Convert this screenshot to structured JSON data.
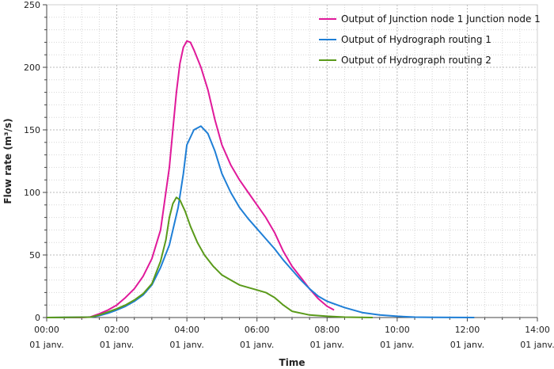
{
  "chart_data": {
    "type": "line",
    "xlabel": "Time",
    "ylabel": "Flow rate (m³/s)",
    "ylim": [
      0,
      250
    ],
    "xlim": [
      0,
      14
    ],
    "x_unit": "hours",
    "grid": true,
    "legend_position": "top-right",
    "yticks": [
      0,
      50,
      100,
      150,
      200,
      250
    ],
    "xticks": [
      {
        "x": 0,
        "time": "00:00",
        "date": "01 janv."
      },
      {
        "x": 2,
        "time": "02:00",
        "date": "01 janv."
      },
      {
        "x": 4,
        "time": "04:00",
        "date": "01 janv."
      },
      {
        "x": 6,
        "time": "06:00",
        "date": "01 janv."
      },
      {
        "x": 8,
        "time": "08:00",
        "date": "01 janv."
      },
      {
        "x": 10,
        "time": "10:00",
        "date": "01 janv."
      },
      {
        "x": 12,
        "time": "12:00",
        "date": "01 janv."
      },
      {
        "x": 14,
        "time": "14:00",
        "date": "01 janv."
      }
    ],
    "series": [
      {
        "name": "Output of Junction node 1 Junction node 1",
        "color": "#e0199a",
        "points": [
          [
            0,
            0
          ],
          [
            1,
            0
          ],
          [
            1.25,
            0.5
          ],
          [
            1.5,
            3
          ],
          [
            1.75,
            6
          ],
          [
            2,
            10
          ],
          [
            2.25,
            16
          ],
          [
            2.5,
            23
          ],
          [
            2.75,
            33
          ],
          [
            3,
            47
          ],
          [
            3.25,
            70
          ],
          [
            3.5,
            120
          ],
          [
            3.6,
            150
          ],
          [
            3.7,
            180
          ],
          [
            3.8,
            203
          ],
          [
            3.9,
            216
          ],
          [
            4,
            221
          ],
          [
            4.1,
            220
          ],
          [
            4.2,
            214
          ],
          [
            4.4,
            200
          ],
          [
            4.6,
            182
          ],
          [
            4.8,
            158
          ],
          [
            5,
            138
          ],
          [
            5.25,
            122
          ],
          [
            5.5,
            110
          ],
          [
            5.75,
            100
          ],
          [
            6,
            90
          ],
          [
            6.25,
            80
          ],
          [
            6.5,
            68
          ],
          [
            6.75,
            53
          ],
          [
            7,
            41
          ],
          [
            7.25,
            32
          ],
          [
            7.5,
            23
          ],
          [
            7.75,
            15
          ],
          [
            8,
            9
          ],
          [
            8.2,
            6
          ]
        ]
      },
      {
        "name": "Output of Hydrograph routing 1",
        "color": "#1f7fd6",
        "points": [
          [
            0,
            0
          ],
          [
            1.25,
            0.3
          ],
          [
            1.5,
            1.5
          ],
          [
            1.75,
            3.5
          ],
          [
            2,
            6
          ],
          [
            2.25,
            9
          ],
          [
            2.5,
            13
          ],
          [
            2.75,
            18
          ],
          [
            3,
            26
          ],
          [
            3.25,
            40
          ],
          [
            3.5,
            58
          ],
          [
            3.75,
            88
          ],
          [
            3.9,
            115
          ],
          [
            4,
            138
          ],
          [
            4.2,
            150
          ],
          [
            4.4,
            153
          ],
          [
            4.6,
            147
          ],
          [
            4.8,
            133
          ],
          [
            5,
            115
          ],
          [
            5.25,
            100
          ],
          [
            5.5,
            88
          ],
          [
            5.75,
            79
          ],
          [
            6,
            71
          ],
          [
            6.25,
            63
          ],
          [
            6.5,
            55
          ],
          [
            6.75,
            46
          ],
          [
            7,
            38
          ],
          [
            7.25,
            30
          ],
          [
            7.5,
            23
          ],
          [
            7.75,
            17
          ],
          [
            8,
            13
          ],
          [
            8.5,
            8
          ],
          [
            9,
            4
          ],
          [
            9.5,
            2
          ],
          [
            10,
            1
          ],
          [
            10.5,
            0.3
          ],
          [
            11,
            0.1
          ],
          [
            12.2,
            0
          ]
        ]
      },
      {
        "name": "Output of Hydrograph routing 2",
        "color": "#5a9a1a",
        "points": [
          [
            0,
            0
          ],
          [
            1.25,
            0.3
          ],
          [
            1.5,
            2
          ],
          [
            1.75,
            4.5
          ],
          [
            2,
            7
          ],
          [
            2.25,
            10
          ],
          [
            2.5,
            14
          ],
          [
            2.75,
            19
          ],
          [
            3,
            27
          ],
          [
            3.25,
            45
          ],
          [
            3.4,
            62
          ],
          [
            3.5,
            80
          ],
          [
            3.6,
            91
          ],
          [
            3.7,
            96
          ],
          [
            3.8,
            94
          ],
          [
            3.95,
            85
          ],
          [
            4.1,
            73
          ],
          [
            4.3,
            60
          ],
          [
            4.5,
            50
          ],
          [
            4.75,
            41
          ],
          [
            5,
            34
          ],
          [
            5.25,
            30
          ],
          [
            5.5,
            26
          ],
          [
            5.75,
            24
          ],
          [
            6,
            22
          ],
          [
            6.25,
            20
          ],
          [
            6.5,
            16
          ],
          [
            6.75,
            10
          ],
          [
            7,
            5
          ],
          [
            7.5,
            2
          ],
          [
            8,
            1
          ],
          [
            8.5,
            0.3
          ],
          [
            9.3,
            0
          ]
        ]
      }
    ]
  }
}
